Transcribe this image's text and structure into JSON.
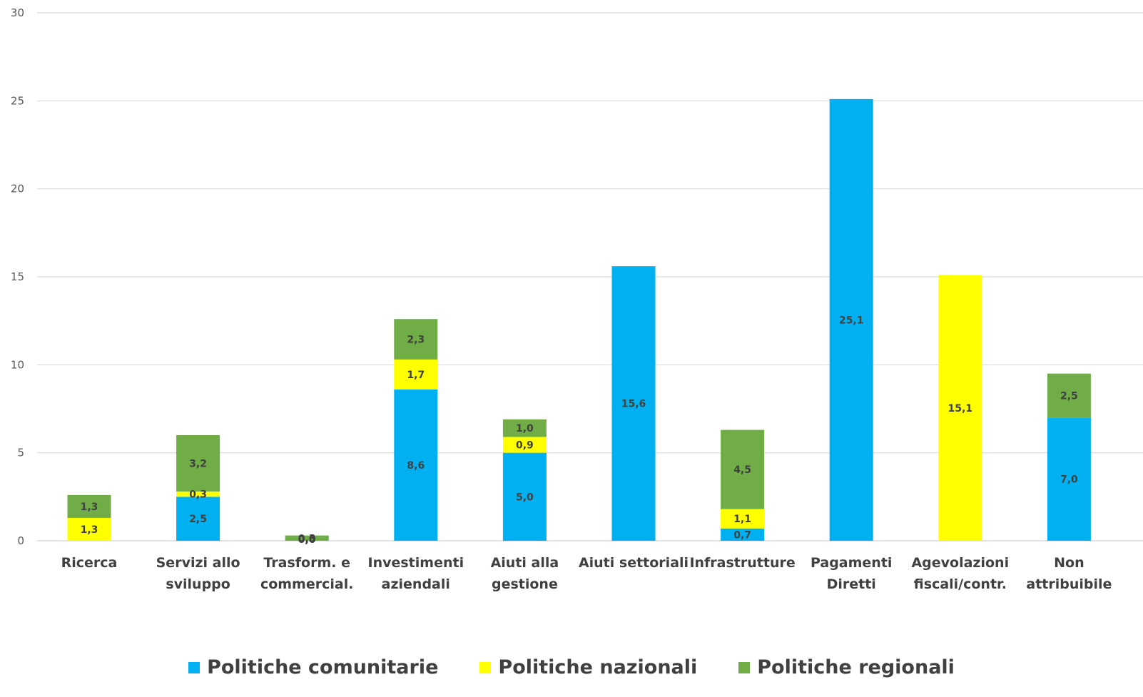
{
  "chart_data": {
    "type": "bar",
    "stacked": true,
    "categories": [
      [
        "Ricerca"
      ],
      [
        "Servizi allo",
        "sviluppo"
      ],
      [
        "Trasform. e",
        "commercial."
      ],
      [
        "Investimenti",
        "aziendali"
      ],
      [
        "Aiuti alla",
        "gestione"
      ],
      [
        "Aiuti settoriali"
      ],
      [
        "Infrastrutture"
      ],
      [
        "Pagamenti",
        "Diretti"
      ],
      [
        "Agevolazioni",
        "fiscali/contr."
      ],
      [
        "Non",
        "attribuibile"
      ]
    ],
    "series": [
      {
        "name": "Politiche comunitarie",
        "color": "#00b0f0",
        "values": [
          0,
          2.5,
          0.0,
          8.6,
          5.0,
          15.6,
          0.7,
          25.1,
          0,
          7.0
        ],
        "labels": [
          "",
          "2,5",
          "0,0",
          "8,6",
          "5,0",
          "15,6",
          "0,7",
          "25,1",
          "",
          "7,0"
        ]
      },
      {
        "name": "Politiche nazionali",
        "color": "#ffff00",
        "values": [
          1.3,
          0.3,
          0.0,
          1.7,
          0.9,
          0,
          1.1,
          0,
          15.1,
          0
        ],
        "labels": [
          "1,3",
          "0,3",
          "0,0",
          "1,7",
          "0,9",
          "",
          "1,1",
          "",
          "15,1",
          ""
        ]
      },
      {
        "name": "Politiche regionali",
        "color": "#70ad47",
        "values": [
          1.3,
          3.2,
          0.3,
          2.3,
          1.0,
          0,
          4.5,
          0,
          0,
          2.5
        ],
        "labels": [
          "1,3",
          "3,2",
          "0,3",
          "2,3",
          "1,0",
          "",
          "4,5",
          "",
          "",
          "2,5"
        ]
      }
    ],
    "yticks": [
      "0",
      "5",
      "10",
      "15",
      "20",
      "25",
      "30"
    ],
    "ylim": [
      0,
      30
    ],
    "grid": true,
    "legend_position": "bottom"
  }
}
